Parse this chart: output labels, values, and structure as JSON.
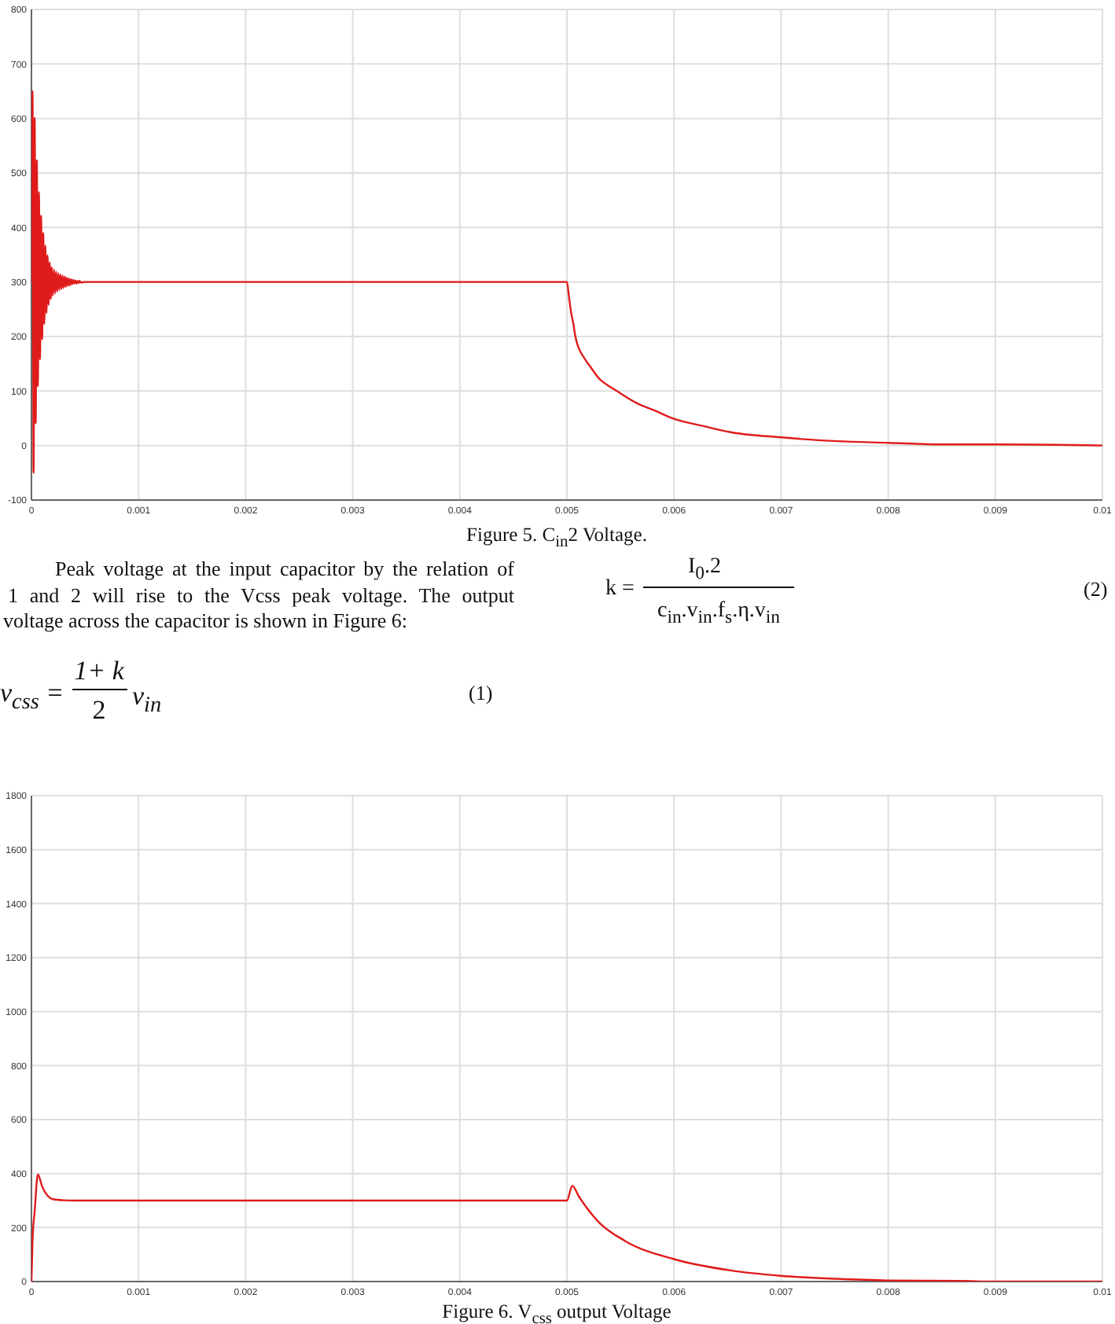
{
  "chart_data": [
    {
      "type": "line",
      "annotations": [
        "Figure 5. C$_{in}$2 Voltage.",
        "Peak voltage at the input capacitor by the relation of",
        "1 and 2 will rise to the Vcss peak voltage. The output",
        "voltage across the capacitor is shown in Figure 6:",
        "v$_{css}$ =",
        "1+ k",
        "2",
        "v$_{in}$",
        "(1)",
        "k =",
        "I$_{0}$.2",
        "c$_{in}$.v$_{in}$.f$_{s}$.η.v$_{in}$",
        "(2)"
      ],
      "x": [
        0,
        1e-05,
        2e-05,
        3e-05,
        4e-05,
        5e-05,
        6e-05,
        7e-05,
        8e-05,
        9e-05,
        0.0001,
        0.00011,
        0.00012,
        0.00013,
        0.00014,
        0.00015,
        0.00016,
        0.00017,
        0.00018,
        0.00019,
        0.0002,
        0.00021,
        0.00022,
        0.00023,
        0.00024,
        0.00025,
        0.00026,
        0.00027,
        0.00028,
        0.00029,
        0.0003,
        0.00031,
        0.00032,
        0.00033,
        0.00034,
        0.00035,
        0.00036,
        0.00037,
        0.00038,
        0.00039,
        0.0004,
        0.00041,
        0.00042,
        0.00043,
        0.00044,
        0.00045,
        0.00046,
        0.0005,
        0.005,
        0.00502,
        0.00504,
        0.00506,
        0.00508,
        0.00516,
        0.00521,
        0.0053,
        0.0054,
        0.00545,
        0.00565,
        0.00581,
        0.006,
        0.00629,
        0.00654,
        0.007,
        0.00752,
        0.008,
        0.0085,
        0.009,
        0.01
      ],
      "values": [
        300,
        650,
        -50,
        601,
        41,
        523,
        109,
        465,
        158,
        422,
        195,
        390,
        223,
        367,
        243,
        349,
        258,
        336,
        269,
        327,
        275,
        323,
        279,
        319,
        282,
        316,
        285,
        314,
        287,
        312,
        289,
        310,
        291,
        308,
        293,
        306,
        294,
        305,
        296,
        304,
        297,
        303,
        297,
        302,
        298,
        302,
        299,
        300,
        300,
        271,
        243,
        223,
        199,
        161,
        147,
        123,
        108,
        102,
        78,
        65,
        49,
        35,
        24,
        15,
        8,
        5,
        2,
        2,
        0
      ],
      "color": "#e01b1b",
      "xlim": [
        0,
        0.01
      ],
      "xticks": [
        0,
        0.001,
        0.002,
        0.003,
        0.004,
        0.005,
        0.006,
        0.007,
        0.008,
        0.009,
        0.01
      ],
      "ylim": [
        -100,
        800
      ],
      "yticks": [
        -100,
        0,
        100,
        200,
        300,
        400,
        500,
        600,
        700,
        800
      ],
      "grid": true
    },
    {
      "type": "line",
      "annotations": [
        "Figure 6. V$_{css}$ output Voltage"
      ],
      "x": [
        0,
        1e-05,
        3e-05,
        6e-05,
        0.0001,
        0.00015,
        0.0002,
        0.0003,
        0.0004,
        0.005,
        0.00505,
        0.00511,
        0.00516,
        0.0053,
        0.00554,
        0.006,
        0.00653,
        0.007,
        0.00752,
        0.008,
        0.0087,
        0.009,
        0.01
      ],
      "values": [
        0,
        150,
        260,
        397,
        352,
        318,
        305,
        301,
        300,
        300,
        355,
        316,
        287,
        219,
        151,
        83,
        41,
        21,
        10,
        4,
        2,
        0,
        0
      ],
      "color": "#e01b1b",
      "xlim": [
        0,
        0.01
      ],
      "xticks": [
        0,
        0.001,
        0.002,
        0.003,
        0.004,
        0.005,
        0.006,
        0.007,
        0.008,
        0.009,
        0.01
      ],
      "ylim": [
        0,
        1800
      ],
      "yticks": [
        0,
        200,
        400,
        600,
        800,
        1000,
        1200,
        1400,
        1600,
        1800
      ],
      "grid": true
    }
  ]
}
